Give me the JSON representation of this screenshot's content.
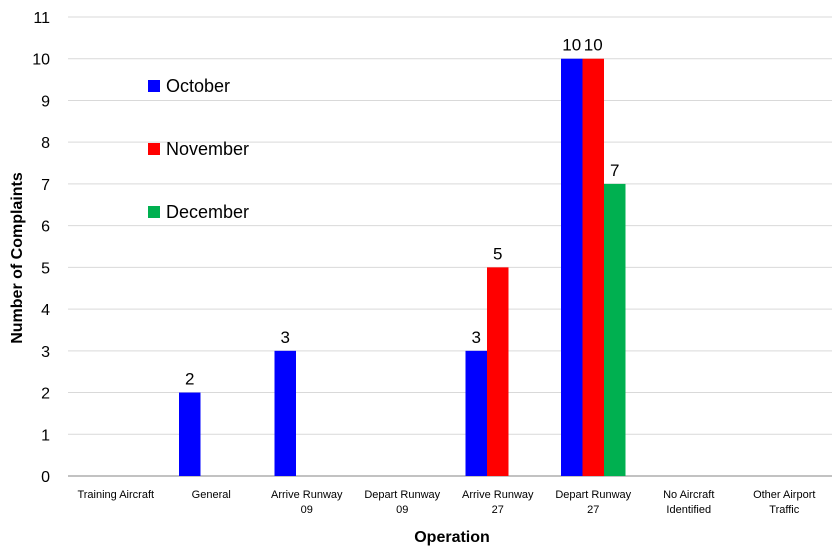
{
  "chart_data": {
    "type": "bar",
    "title": "",
    "xlabel": "Operation",
    "ylabel": "Number of Complaints",
    "ylim": [
      0,
      11
    ],
    "yticks": [
      0,
      1,
      2,
      3,
      4,
      5,
      6,
      7,
      8,
      9,
      10,
      11
    ],
    "grid": true,
    "legend_position": "top-left",
    "categories": [
      [
        "Training Aircraft"
      ],
      [
        "General"
      ],
      [
        "Arrive Runway",
        "09"
      ],
      [
        "Depart Runway",
        "09"
      ],
      [
        "Arrive Runway",
        "27"
      ],
      [
        "Depart Runway",
        "27"
      ],
      [
        "No Aircraft",
        "Identified"
      ],
      [
        "Other Airport",
        "Traffic"
      ]
    ],
    "series": [
      {
        "name": "October",
        "color": "#0000ff",
        "values": [
          null,
          2,
          3,
          null,
          3,
          10,
          null,
          null
        ]
      },
      {
        "name": "November",
        "color": "#ff0000",
        "values": [
          null,
          null,
          null,
          null,
          5,
          10,
          null,
          null
        ]
      },
      {
        "name": "December",
        "color": "#00b050",
        "values": [
          null,
          null,
          null,
          null,
          null,
          7,
          null,
          null
        ]
      }
    ]
  }
}
